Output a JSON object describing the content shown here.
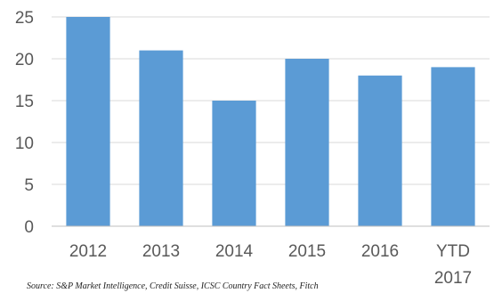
{
  "chart_data": {
    "type": "bar",
    "categories": [
      "2012",
      "2013",
      "2014",
      "2015",
      "2016",
      "YTD 2017"
    ],
    "category_lines": [
      [
        "2012"
      ],
      [
        "2013"
      ],
      [
        "2014"
      ],
      [
        "2015"
      ],
      [
        "2016"
      ],
      [
        "YTD",
        "2017"
      ]
    ],
    "values": [
      25,
      21,
      15,
      20,
      18,
      19
    ],
    "yticks": [
      0,
      5,
      10,
      15,
      20,
      25
    ],
    "ylim": [
      0,
      25
    ],
    "title": "",
    "xlabel": "",
    "ylabel": "",
    "grid": true,
    "bar_color": "#5b9bd5",
    "grid_color": "#d9d9d9",
    "axis_color": "#bfbfbf"
  },
  "source": "Source: S&P Market Intelligence, Credit Suisse, ICSC Country Fact Sheets, Fitch"
}
